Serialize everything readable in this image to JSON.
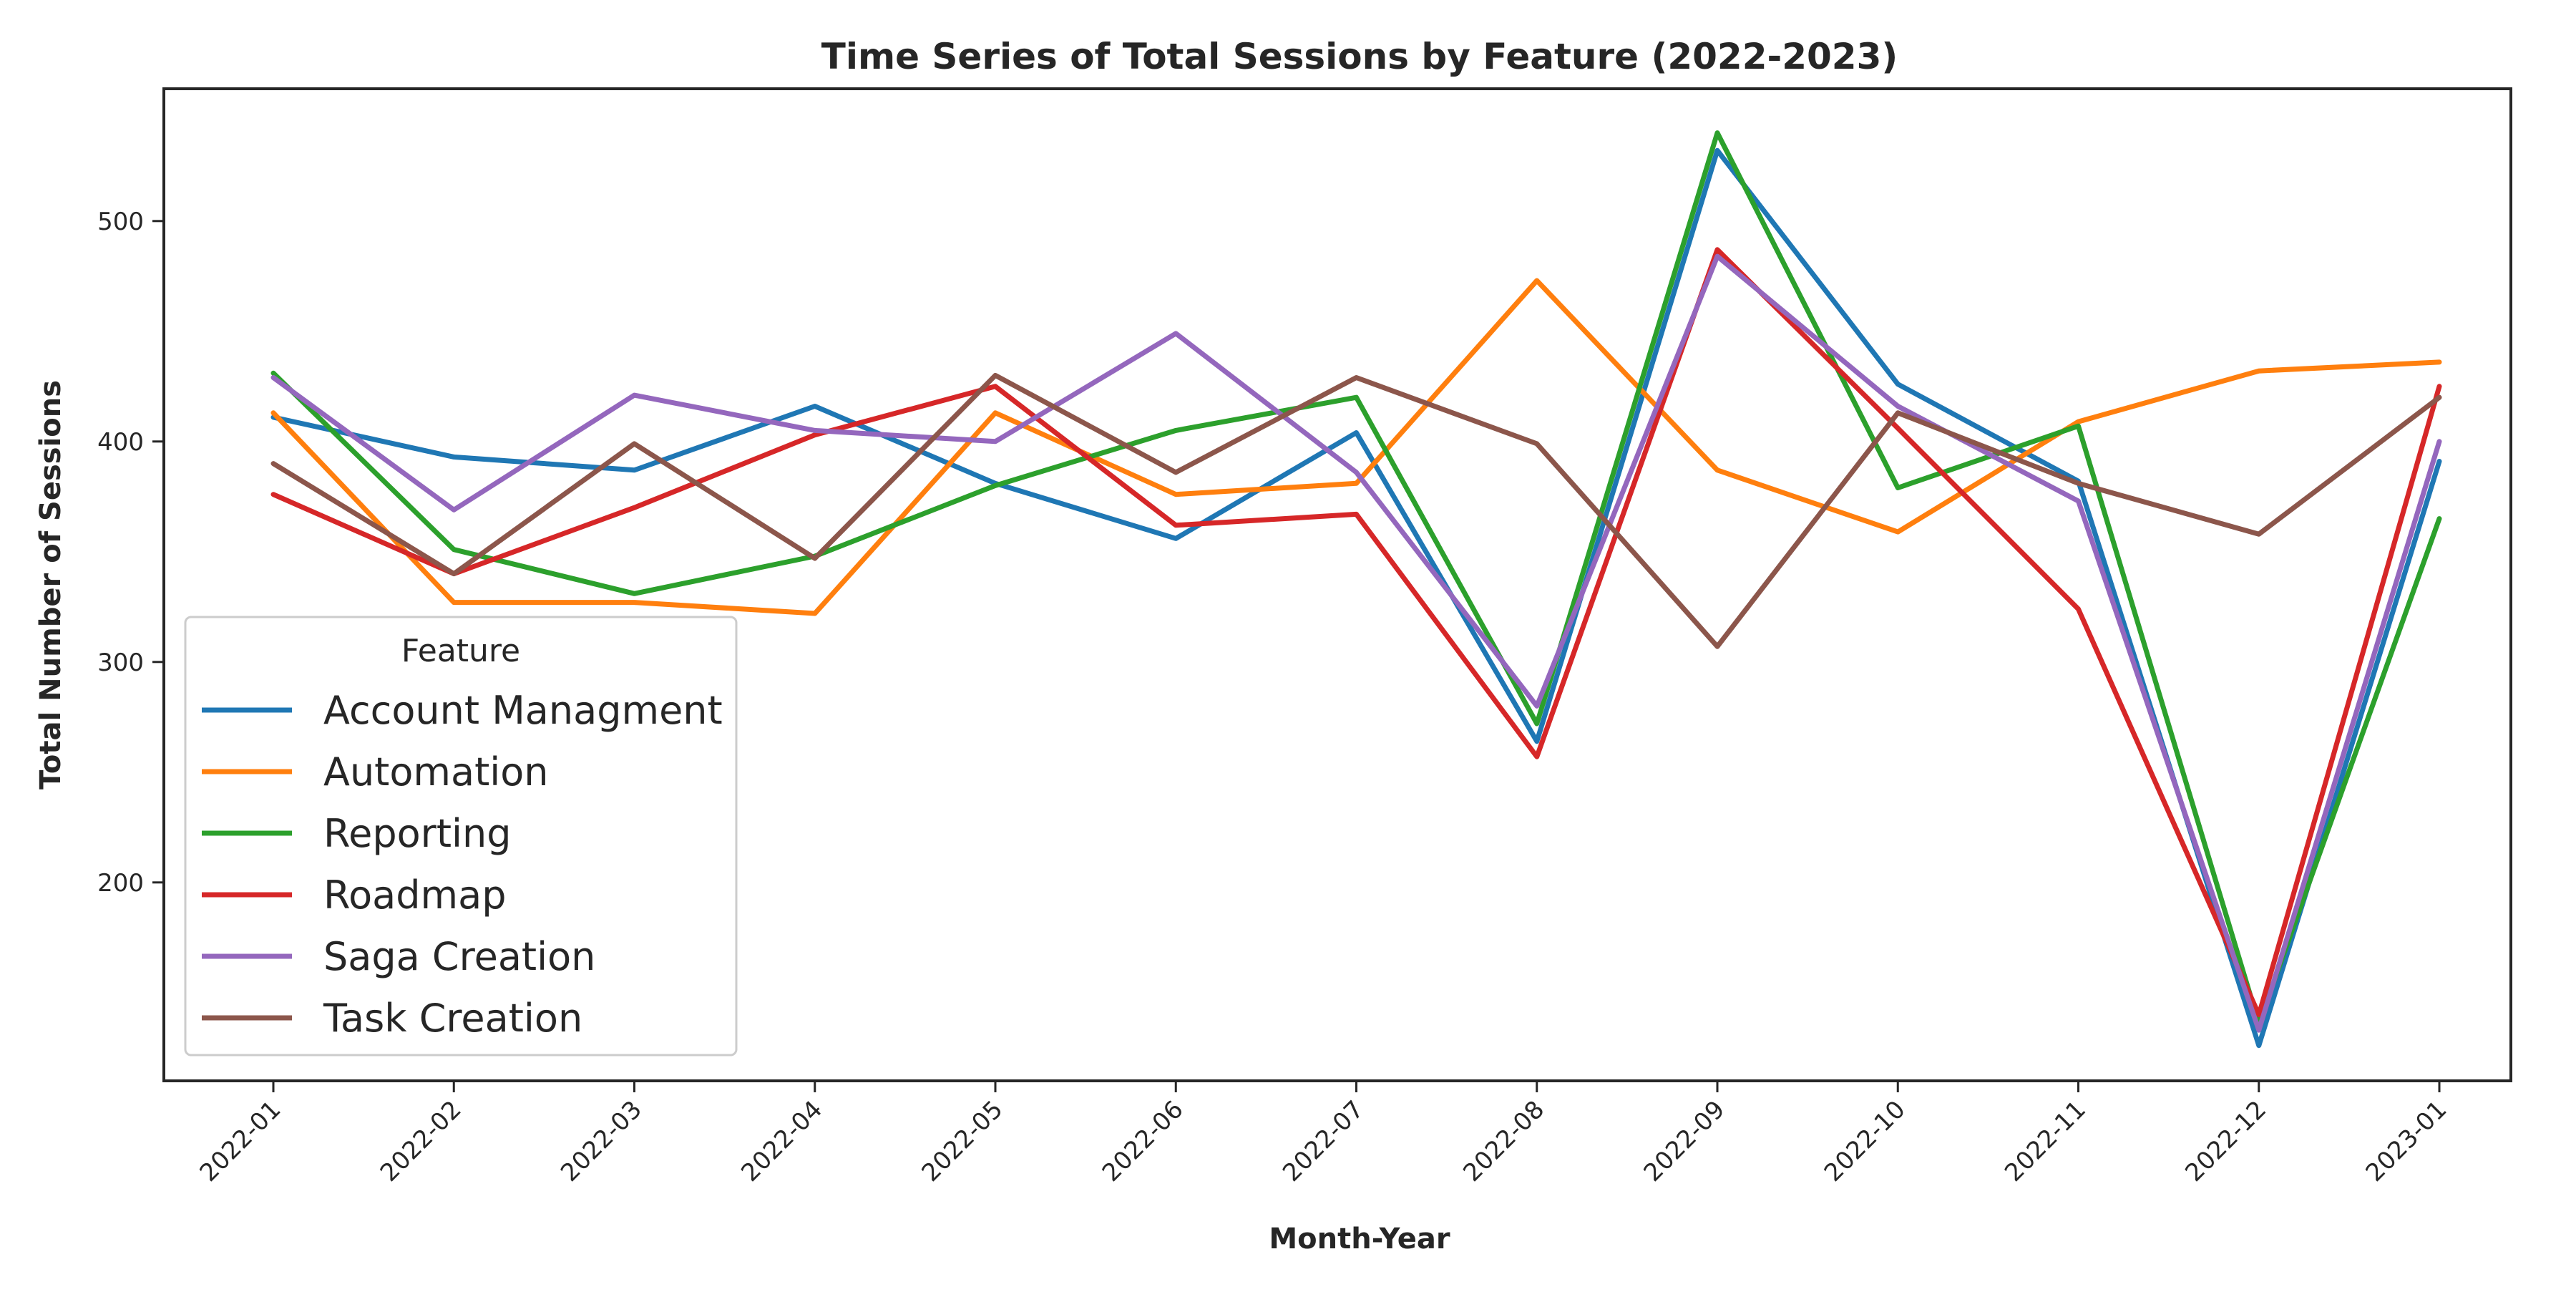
{
  "chart_data": {
    "type": "line",
    "title": "Time Series of Total Sessions by Feature (2022-2023)",
    "xlabel": "Month-Year",
    "ylabel": "Total Number of Sessions",
    "x": [
      "2022-01",
      "2022-02",
      "2022-03",
      "2022-04",
      "2022-05",
      "2022-06",
      "2022-07",
      "2022-08",
      "2022-09",
      "2022-10",
      "2022-11",
      "2022-12",
      "2023-01"
    ],
    "ylim": [
      110,
      560
    ],
    "yticks": [
      200,
      300,
      400,
      500
    ],
    "grid": false,
    "legend": {
      "title": "Feature",
      "placement": "lower-left"
    },
    "series": [
      {
        "name": "Account Managment",
        "color": "#1f77b4",
        "values": [
          411,
          393,
          387,
          416,
          381,
          356,
          404,
          264,
          532,
          426,
          382,
          126,
          391
        ]
      },
      {
        "name": "Automation",
        "color": "#ff7f0e",
        "values": [
          413,
          327,
          327,
          322,
          413,
          376,
          381,
          473,
          387,
          359,
          409,
          432,
          436
        ]
      },
      {
        "name": "Reporting",
        "color": "#2ca02c",
        "values": [
          431,
          351,
          331,
          348,
          380,
          405,
          420,
          272,
          540,
          379,
          407,
          136,
          365
        ]
      },
      {
        "name": "Roadmap",
        "color": "#d62728",
        "values": [
          376,
          340,
          370,
          403,
          425,
          362,
          367,
          257,
          487,
          406,
          324,
          140,
          425
        ]
      },
      {
        "name": "Saga Creation",
        "color": "#9467bd",
        "values": [
          429,
          369,
          421,
          405,
          400,
          449,
          386,
          280,
          484,
          416,
          373,
          133,
          400
        ]
      },
      {
        "name": "Task Creation",
        "color": "#8c564b",
        "values": [
          390,
          340,
          399,
          347,
          430,
          386,
          429,
          399,
          307,
          413,
          381,
          358,
          420
        ]
      }
    ]
  }
}
